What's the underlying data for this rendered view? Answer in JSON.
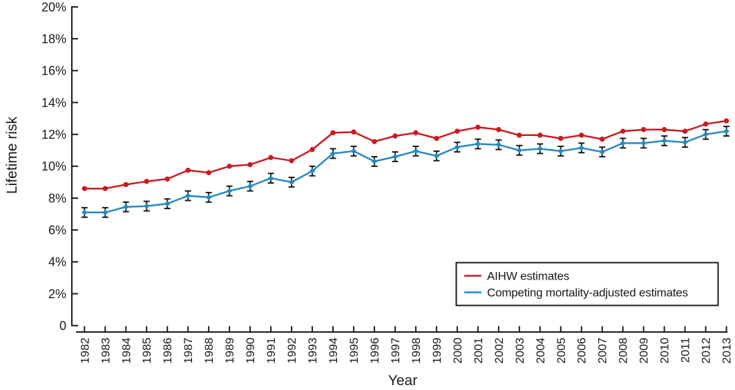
{
  "chart_data": {
    "type": "line",
    "title": "",
    "xlabel": "Year",
    "ylabel": "Lifetime risk",
    "x": [
      1982,
      1983,
      1984,
      1985,
      1986,
      1987,
      1988,
      1989,
      1990,
      1991,
      1992,
      1993,
      1994,
      1995,
      1996,
      1997,
      1998,
      1999,
      2000,
      2001,
      2002,
      2003,
      2004,
      2005,
      2006,
      2007,
      2008,
      2009,
      2010,
      2011,
      2012,
      2013
    ],
    "ylim": [
      0,
      20
    ],
    "ytick_step": 2,
    "ytick_labels": [
      "0",
      "2%",
      "4%",
      "6%",
      "8%",
      "10%",
      "12%",
      "14%",
      "16%",
      "18%",
      "20%"
    ],
    "grid": false,
    "legend_position": "lower-right",
    "axis_color": "#1a1a1a",
    "text_color": "#1a1a1a",
    "series": [
      {
        "name": "AIHW estimates",
        "color": "#cb1a1e",
        "marker": "circle",
        "values": [
          8.6,
          8.6,
          8.85,
          9.05,
          9.2,
          9.75,
          9.6,
          10.0,
          10.1,
          10.55,
          10.35,
          11.05,
          12.1,
          12.15,
          11.55,
          11.9,
          12.1,
          11.75,
          12.2,
          12.45,
          12.3,
          11.95,
          11.95,
          11.75,
          11.95,
          11.7,
          12.2,
          12.3,
          12.3,
          12.2,
          12.65,
          12.85
        ]
      },
      {
        "name": "Competing mortality-adjusted estimates",
        "color": "#2589c2",
        "marker": "diamond",
        "error_half_width": 0.3,
        "error_color": "#1a1a1a",
        "values": [
          7.1,
          7.1,
          7.45,
          7.5,
          7.65,
          8.15,
          8.05,
          8.45,
          8.75,
          9.25,
          9.0,
          9.7,
          10.8,
          10.95,
          10.3,
          10.6,
          10.95,
          10.65,
          11.2,
          11.4,
          11.35,
          11.0,
          11.1,
          10.95,
          11.15,
          10.9,
          11.45,
          11.45,
          11.6,
          11.5,
          12.0,
          12.2
        ]
      }
    ]
  }
}
